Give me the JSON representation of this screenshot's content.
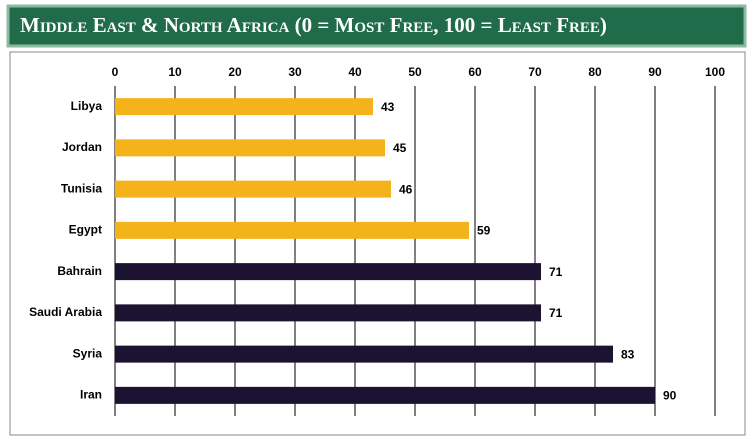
{
  "chart_data": {
    "type": "bar",
    "orientation": "horizontal",
    "title": "Middle East & North Africa (0 = Most Free, 100 = Least Free)",
    "categories": [
      "Libya",
      "Jordan",
      "Tunisia",
      "Egypt",
      "Bahrain",
      "Saudi Arabia",
      "Syria",
      "Iran"
    ],
    "values": [
      43,
      45,
      46,
      59,
      71,
      71,
      83,
      90
    ],
    "colors": [
      "#f5b31b",
      "#f5b31b",
      "#f5b31b",
      "#f5b31b",
      "#1c1332",
      "#1c1332",
      "#1c1332",
      "#1c1332"
    ],
    "xlim": [
      0,
      100
    ],
    "xticks": [
      0,
      10,
      20,
      30,
      40,
      50,
      60,
      70,
      80,
      90,
      100
    ],
    "grid": true
  }
}
